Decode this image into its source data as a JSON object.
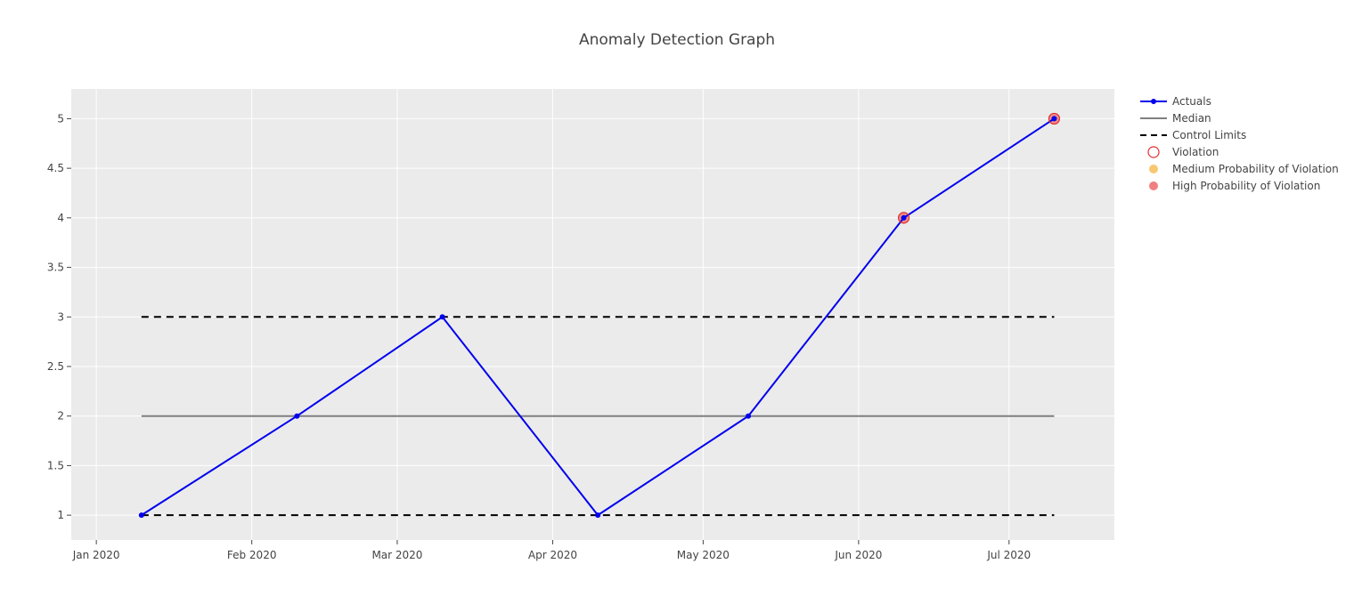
{
  "chart_data": {
    "type": "line",
    "title": "Anomaly Detection Graph",
    "xlabel": "",
    "ylabel": "",
    "x_axis": {
      "type": "date",
      "range": [
        "2019-12-27",
        "2020-07-22"
      ],
      "ticks": [
        {
          "value": "2020-01-01",
          "label": "Jan 2020"
        },
        {
          "value": "2020-02-01",
          "label": "Feb 2020"
        },
        {
          "value": "2020-03-01",
          "label": "Mar 2020"
        },
        {
          "value": "2020-04-01",
          "label": "Apr 2020"
        },
        {
          "value": "2020-05-01",
          "label": "May 2020"
        },
        {
          "value": "2020-06-01",
          "label": "Jun 2020"
        },
        {
          "value": "2020-07-01",
          "label": "Jul 2020"
        }
      ]
    },
    "y_axis": {
      "range": [
        0.75,
        5.3
      ],
      "ticks": [
        {
          "value": 1,
          "label": "1"
        },
        {
          "value": 1.5,
          "label": "1.5"
        },
        {
          "value": 2,
          "label": "2"
        },
        {
          "value": 2.5,
          "label": "2.5"
        },
        {
          "value": 3,
          "label": "3"
        },
        {
          "value": 3.5,
          "label": "3.5"
        },
        {
          "value": 4,
          "label": "4"
        },
        {
          "value": 4.5,
          "label": "4.5"
        },
        {
          "value": 5,
          "label": "5"
        }
      ]
    },
    "grid": true,
    "legend_position": "right",
    "colors": {
      "plot_background": "#ebebeb",
      "grid": "#ffffff",
      "actuals": "#0000ee",
      "median": "#808080",
      "control_limits": "#000000",
      "violation": "#e03030",
      "medium_probability": "#f8c870",
      "high_probability": "#f08080"
    },
    "series": [
      {
        "name": "Actuals",
        "kind": "line+markers",
        "x": [
          "2020-01-10",
          "2020-02-10",
          "2020-03-10",
          "2020-04-10",
          "2020-05-10",
          "2020-06-10",
          "2020-07-10"
        ],
        "y": [
          1,
          2,
          3,
          1,
          2,
          4,
          5
        ]
      },
      {
        "name": "Median",
        "kind": "line",
        "x": [
          "2020-01-10",
          "2020-07-10"
        ],
        "y": [
          2,
          2
        ]
      },
      {
        "name": "Control Limits",
        "kind": "dashed-line",
        "segments": [
          {
            "x": [
              "2020-01-10",
              "2020-07-10"
            ],
            "y": [
              3,
              3
            ]
          },
          {
            "x": [
              "2020-01-10",
              "2020-07-10"
            ],
            "y": [
              1,
              1
            ]
          }
        ]
      },
      {
        "name": "Violation",
        "kind": "open-circle-markers",
        "x": [
          "2020-06-10",
          "2020-07-10"
        ],
        "y": [
          4,
          5
        ]
      },
      {
        "name": "Medium Probability of Violation",
        "kind": "filled-markers",
        "x": [],
        "y": []
      },
      {
        "name": "High Probability of Violation",
        "kind": "filled-markers",
        "x": [
          "2020-06-10",
          "2020-07-10"
        ],
        "y": [
          4,
          5
        ]
      }
    ],
    "legend": [
      {
        "label": "Actuals",
        "symbol": "line-marker"
      },
      {
        "label": "Median",
        "symbol": "line"
      },
      {
        "label": "Control Limits",
        "symbol": "dashed-line"
      },
      {
        "label": "Violation",
        "symbol": "open-circle"
      },
      {
        "label": "Medium Probability of Violation",
        "symbol": "filled-circle"
      },
      {
        "label": "High Probability of Violation",
        "symbol": "filled-circle"
      }
    ]
  }
}
